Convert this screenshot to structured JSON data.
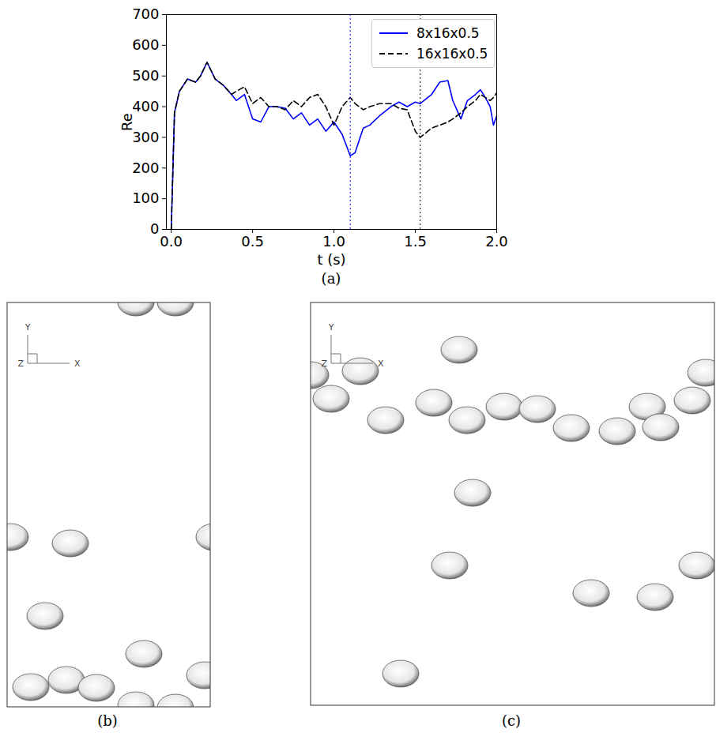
{
  "chart_data": {
    "type": "line",
    "caption": "(a)",
    "x_label": "t (s)",
    "y_label": "Re",
    "xlim": [
      -0.03,
      2.0
    ],
    "ylim": [
      0,
      700
    ],
    "xticks": [
      {
        "value": 0,
        "label": "0.0"
      },
      {
        "value": 0.5,
        "label": "0.5"
      },
      {
        "value": 1,
        "label": "1.0"
      },
      {
        "value": 1.5,
        "label": "1.5"
      },
      {
        "value": 2,
        "label": "2.0"
      }
    ],
    "yticks": [
      0,
      100,
      200,
      300,
      400,
      500,
      600,
      700
    ],
    "legend": "upper right",
    "x": [
      0,
      0.02,
      0.05,
      0.1,
      0.15,
      0.18,
      0.22,
      0.27,
      0.32,
      0.37,
      0.4,
      0.45,
      0.5,
      0.55,
      0.6,
      0.65,
      0.7,
      0.75,
      0.8,
      0.85,
      0.9,
      0.95,
      1.0,
      1.05,
      1.1,
      1.13,
      1.18,
      1.22,
      1.28,
      1.35,
      1.4,
      1.45,
      1.5,
      1.53,
      1.6,
      1.65,
      1.7,
      1.73,
      1.78,
      1.82,
      1.87,
      1.9,
      1.93,
      1.96,
      1.98,
      2.0
    ],
    "series": [
      {
        "name": "8x16x0.5",
        "color": "#0000ff",
        "line_style": "solid",
        "values": [
          0,
          380,
          450,
          490,
          480,
          500,
          545,
          490,
          470,
          440,
          420,
          440,
          360,
          350,
          400,
          400,
          395,
          360,
          380,
          340,
          360,
          320,
          350,
          310,
          240,
          250,
          330,
          340,
          370,
          400,
          415,
          400,
          415,
          410,
          440,
          480,
          485,
          420,
          360,
          420,
          440,
          455,
          430,
          400,
          340,
          370
        ]
      },
      {
        "name": "16x16x0.5",
        "color": "#000000",
        "line_style": "dashed",
        "values": [
          0,
          380,
          450,
          490,
          480,
          500,
          545,
          490,
          470,
          440,
          450,
          465,
          410,
          430,
          400,
          400,
          390,
          420,
          400,
          430,
          440,
          400,
          340,
          400,
          430,
          410,
          390,
          400,
          410,
          410,
          395,
          390,
          320,
          300,
          330,
          340,
          350,
          360,
          380,
          400,
          420,
          440,
          430,
          420,
          430,
          445
        ]
      }
    ],
    "vlines": [
      {
        "x": 1.1,
        "color": "#0000ff",
        "line_style": "dotted"
      },
      {
        "x": 1.53,
        "color": "#000000",
        "line_style": "dotted"
      }
    ]
  },
  "panels": [
    {
      "caption": "(b)",
      "axis_labels": [
        "X",
        "Y",
        "Z"
      ]
    },
    {
      "caption": "(c)",
      "axis_labels": [
        "X",
        "Y",
        "Z"
      ]
    }
  ]
}
